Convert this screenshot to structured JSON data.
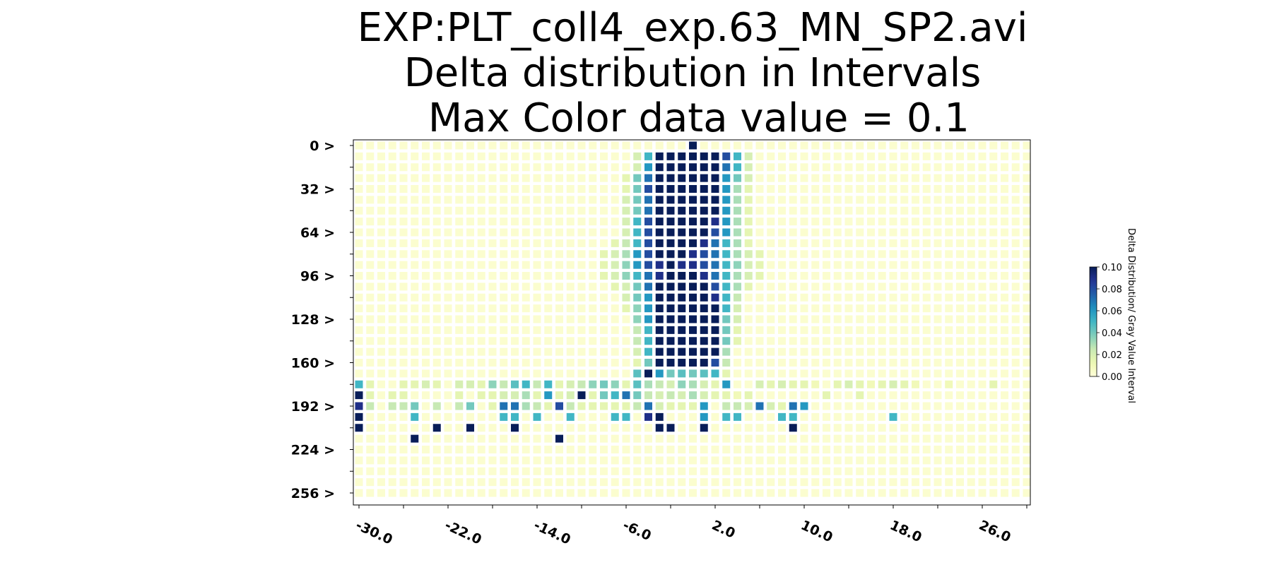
{
  "chart_data": {
    "type": "heatmap",
    "title_lines": [
      "EXP:PLT_coll4_exp.63_MN_SP2.avi",
      "Delta distribution in Intervals",
      " Max Color data value = 0.1"
    ],
    "x_tick_labels": [
      "-30.0",
      "-22.0",
      "-14.0",
      "-6.0",
      "2.0",
      "10.0",
      "18.0",
      "26.0"
    ],
    "x_tick_values": [
      -30,
      -22,
      -14,
      -6,
      2,
      10,
      18,
      26
    ],
    "x_range": [
      -30,
      30
    ],
    "y_tick_labels": [
      "0 >",
      "32 >",
      "64 >",
      "96 >",
      "128 >",
      "160 >",
      "192 >",
      "224 >",
      "256 >"
    ],
    "y_tick_values": [
      0,
      32,
      64,
      96,
      128,
      160,
      192,
      224,
      256
    ],
    "y_range": [
      0,
      256
    ],
    "y_step": 8,
    "x_step": 1,
    "colorbar": {
      "label": "Delta Distribution/ Gray Value Interval",
      "ticks": [
        "0.00",
        "0.02",
        "0.04",
        "0.06",
        "0.08",
        "0.10"
      ],
      "tick_values": [
        0,
        0.02,
        0.04,
        0.06,
        0.08,
        0.1
      ],
      "min": 0,
      "max": 0.1,
      "colormap": "YlGnBu"
    },
    "background_value": 0.003,
    "rows": [
      {
        "y": 0,
        "cells": {
          "0": 0.1
        }
      },
      {
        "y": 8,
        "cells": {
          "-5": 0.02,
          "-4": 0.05,
          "-3": 0.1,
          "-2": 0.1,
          "-1": 0.1,
          "0": 0.1,
          "1": 0.1,
          "2": 0.1,
          "3": 0.08,
          "4": 0.05,
          "5": 0.02
        }
      },
      {
        "y": 16,
        "cells": {
          "-5": 0.02,
          "-4": 0.06,
          "-3": 0.1,
          "-2": 0.1,
          "-1": 0.1,
          "0": 0.1,
          "1": 0.1,
          "2": 0.1,
          "3": 0.07,
          "4": 0.05,
          "5": 0.02
        }
      },
      {
        "y": 24,
        "cells": {
          "-6": 0.015,
          "-5": 0.04,
          "-4": 0.07,
          "-3": 0.1,
          "-2": 0.1,
          "-1": 0.1,
          "0": 0.1,
          "1": 0.1,
          "2": 0.1,
          "3": 0.06,
          "4": 0.04,
          "5": 0.02
        }
      },
      {
        "y": 32,
        "cells": {
          "-6": 0.015,
          "-5": 0.04,
          "-4": 0.08,
          "-3": 0.1,
          "-2": 0.1,
          "-1": 0.1,
          "0": 0.1,
          "1": 0.1,
          "2": 0.1,
          "3": 0.06,
          "4": 0.03,
          "5": 0.015
        }
      },
      {
        "y": 40,
        "cells": {
          "-6": 0.02,
          "-5": 0.04,
          "-4": 0.07,
          "-3": 0.1,
          "-2": 0.1,
          "-1": 0.1,
          "0": 0.1,
          "1": 0.1,
          "2": 0.1,
          "3": 0.06,
          "4": 0.03,
          "5": 0.015
        }
      },
      {
        "y": 48,
        "cells": {
          "-6": 0.02,
          "-5": 0.04,
          "-4": 0.07,
          "-3": 0.1,
          "-2": 0.1,
          "-1": 0.1,
          "0": 0.1,
          "1": 0.1,
          "2": 0.1,
          "3": 0.06,
          "4": 0.03,
          "5": 0.015
        }
      },
      {
        "y": 56,
        "cells": {
          "-6": 0.02,
          "-5": 0.05,
          "-4": 0.08,
          "-3": 0.1,
          "-2": 0.1,
          "-1": 0.1,
          "0": 0.1,
          "1": 0.1,
          "2": 0.09,
          "3": 0.06,
          "4": 0.03,
          "5": 0.015
        }
      },
      {
        "y": 64,
        "cells": {
          "-6": 0.02,
          "-5": 0.05,
          "-4": 0.08,
          "-3": 0.1,
          "-2": 0.1,
          "-1": 0.1,
          "0": 0.1,
          "1": 0.1,
          "2": 0.08,
          "3": 0.06,
          "4": 0.03,
          "5": 0.015
        }
      },
      {
        "y": 72,
        "cells": {
          "-7": 0.015,
          "-6": 0.025,
          "-5": 0.05,
          "-4": 0.08,
          "-3": 0.1,
          "-2": 0.1,
          "-1": 0.1,
          "0": 0.1,
          "1": 0.09,
          "2": 0.07,
          "3": 0.05,
          "4": 0.03,
          "5": 0.015
        }
      },
      {
        "y": 80,
        "cells": {
          "-8": 0.015,
          "-7": 0.02,
          "-6": 0.03,
          "-5": 0.06,
          "-4": 0.08,
          "-3": 0.1,
          "-2": 0.1,
          "-1": 0.1,
          "0": 0.09,
          "1": 0.08,
          "2": 0.07,
          "3": 0.05,
          "4": 0.03,
          "5": 0.02,
          "6": 0.015
        }
      },
      {
        "y": 88,
        "cells": {
          "-8": 0.015,
          "-7": 0.02,
          "-6": 0.035,
          "-5": 0.06,
          "-4": 0.08,
          "-3": 0.09,
          "-2": 0.1,
          "-1": 0.09,
          "0": 0.09,
          "1": 0.08,
          "2": 0.07,
          "3": 0.05,
          "4": 0.035,
          "5": 0.02,
          "6": 0.015
        }
      },
      {
        "y": 96,
        "cells": {
          "-8": 0.015,
          "-7": 0.02,
          "-6": 0.035,
          "-5": 0.05,
          "-4": 0.07,
          "-3": 0.09,
          "-2": 0.1,
          "-1": 0.1,
          "0": 0.1,
          "1": 0.09,
          "2": 0.07,
          "3": 0.05,
          "4": 0.03,
          "5": 0.02,
          "6": 0.015
        }
      },
      {
        "y": 104,
        "cells": {
          "-7": 0.015,
          "-6": 0.02,
          "-5": 0.04,
          "-4": 0.07,
          "-3": 0.1,
          "-2": 0.1,
          "-1": 0.1,
          "0": 0.1,
          "1": 0.1,
          "2": 0.08,
          "3": 0.05,
          "4": 0.03,
          "5": 0.015
        }
      },
      {
        "y": 112,
        "cells": {
          "-6": 0.02,
          "-5": 0.04,
          "-4": 0.06,
          "-3": 0.1,
          "-2": 0.1,
          "-1": 0.1,
          "0": 0.1,
          "1": 0.1,
          "2": 0.09,
          "3": 0.05,
          "4": 0.025
        }
      },
      {
        "y": 120,
        "cells": {
          "-6": 0.015,
          "-5": 0.035,
          "-4": 0.06,
          "-3": 0.1,
          "-2": 0.1,
          "-1": 0.1,
          "0": 0.1,
          "1": 0.1,
          "2": 0.1,
          "3": 0.05,
          "4": 0.02
        }
      },
      {
        "y": 128,
        "cells": {
          "-5": 0.035,
          "-4": 0.06,
          "-3": 0.1,
          "-2": 0.1,
          "-1": 0.1,
          "0": 0.1,
          "1": 0.1,
          "2": 0.1,
          "3": 0.04,
          "4": 0.02
        }
      },
      {
        "y": 136,
        "cells": {
          "-5": 0.025,
          "-4": 0.05,
          "-3": 0.1,
          "-2": 0.1,
          "-1": 0.1,
          "0": 0.1,
          "1": 0.1,
          "2": 0.1,
          "3": 0.04,
          "4": 0.015
        }
      },
      {
        "y": 144,
        "cells": {
          "-5": 0.025,
          "-4": 0.05,
          "-3": 0.1,
          "-2": 0.1,
          "-1": 0.1,
          "0": 0.1,
          "1": 0.1,
          "2": 0.1,
          "3": 0.04,
          "4": 0.015
        }
      },
      {
        "y": 152,
        "cells": {
          "-5": 0.02,
          "-4": 0.05,
          "-3": 0.1,
          "-2": 0.1,
          "-1": 0.1,
          "0": 0.1,
          "1": 0.1,
          "2": 0.1,
          "3": 0.03
        }
      },
      {
        "y": 160,
        "cells": {
          "-5": 0.015,
          "-4": 0.04,
          "-3": 0.1,
          "-2": 0.1,
          "-1": 0.1,
          "0": 0.1,
          "1": 0.1,
          "2": 0.08,
          "3": 0.025
        }
      },
      {
        "y": 168,
        "cells": {
          "-5": 0.045,
          "-4": 0.1,
          "-3": 0.06,
          "-2": 0.04,
          "-1": 0.045,
          "0": 0.04,
          "1": 0.045,
          "2": 0.05,
          "3": 0.015
        }
      },
      {
        "y": 176,
        "cells": {
          "-30": 0.05,
          "-29": 0.015,
          "-26": 0.015,
          "-25": 0.015,
          "-24": 0.02,
          "-23": 0.015,
          "-21": 0.02,
          "-20": 0.02,
          "-19": 0.015,
          "-18": 0.035,
          "-17": 0.025,
          "-16": 0.045,
          "-15": 0.05,
          "-14": 0.025,
          "-13": 0.05,
          "-12": 0.015,
          "-11": 0.02,
          "-10": 0.025,
          "-9": 0.035,
          "-8": 0.04,
          "-7": 0.035,
          "-6": 0.015,
          "-5": 0.045,
          "-4": 0.03,
          "-3": 0.025,
          "-2": 0.02,
          "-1": 0.035,
          "0": 0.03,
          "1": 0.02,
          "2": 0.015,
          "3": 0.06,
          "6": 0.02,
          "7": 0.015,
          "8": 0.02,
          "9": 0.015,
          "10": 0.015,
          "11": 0.01,
          "13": 0.015,
          "14": 0.02,
          "15": 0.015,
          "16": 0.01,
          "17": 0.015,
          "18": 0.02,
          "19": 0.015,
          "20": 0.01,
          "23": 0.01,
          "27": 0.015
        }
      },
      {
        "y": 184,
        "cells": {
          "-30": 0.1,
          "-29": 0.015,
          "-27": 0.015,
          "-26": 0.015,
          "-21": 0.015,
          "-19": 0.015,
          "-18": 0.015,
          "-17": 0.02,
          "-16": 0.02,
          "-15": 0.03,
          "-14": 0.015,
          "-13": 0.06,
          "-12": 0.015,
          "-11": 0.02,
          "-10": 0.1,
          "-9": 0.015,
          "-8": 0.04,
          "-7": 0.05,
          "-6": 0.07,
          "-5": 0.04,
          "-4": 0.025,
          "-3": 0.02,
          "-2": 0.025,
          "-1": 0.02,
          "0": 0.03,
          "1": 0.02,
          "2": 0.015,
          "3": 0.015,
          "4": 0.01,
          "5": 0.015,
          "12": 0.015,
          "15": 0.015
        }
      },
      {
        "y": 192,
        "cells": {
          "-30": 0.09,
          "-29": 0.025,
          "-27": 0.025,
          "-26": 0.025,
          "-25": 0.04,
          "-23": 0.025,
          "-21": 0.025,
          "-20": 0.04,
          "-18": 0.015,
          "-17": 0.07,
          "-16": 0.07,
          "-15": 0.03,
          "-14": 0.025,
          "-13": 0.015,
          "-12": 0.08,
          "-11": 0.025,
          "-10": 0.015,
          "-9": 0.015,
          "-8": 0.015,
          "-7": 0.015,
          "-6": 0.015,
          "-5": 0.025,
          "-4": 0.07,
          "-3": 0.02,
          "-2": 0.015,
          "-1": 0.015,
          "0": 0.015,
          "1": 0.06,
          "3": 0.025,
          "4": 0.025,
          "5": 0.02,
          "6": 0.07,
          "7": 0.02,
          "8": 0.015,
          "9": 0.07,
          "10": 0.06
        }
      },
      {
        "y": 200,
        "cells": {
          "-30": 0.1,
          "-25": 0.05,
          "-17": 0.05,
          "-16": 0.05,
          "-14": 0.05,
          "-11": 0.05,
          "-7": 0.05,
          "-6": 0.05,
          "-4": 0.09,
          "-3": 0.1,
          "1": 0.06,
          "3": 0.05,
          "4": 0.05,
          "8": 0.05,
          "9": 0.05,
          "18": 0.05
        }
      },
      {
        "y": 208,
        "cells": {
          "-30": 0.1,
          "-23": 0.1,
          "-20": 0.1,
          "-16": 0.1,
          "-3": 0.1,
          "-2": 0.1,
          "1": 0.1,
          "9": 0.1
        }
      },
      {
        "y": 216,
        "cells": {
          "-25": 0.1,
          "-12": 0.1
        }
      },
      {
        "y": 224,
        "cells": {}
      },
      {
        "y": 232,
        "cells": {}
      },
      {
        "y": 240,
        "cells": {}
      },
      {
        "y": 248,
        "cells": {}
      },
      {
        "y": 256,
        "cells": {}
      }
    ]
  }
}
